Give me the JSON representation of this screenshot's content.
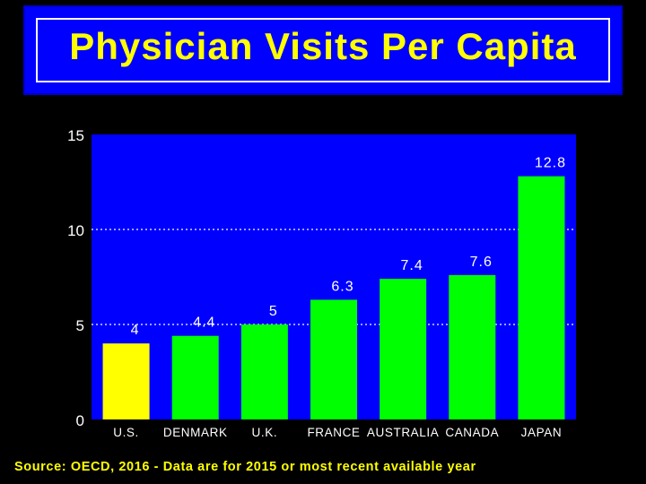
{
  "title": "Physician Visits Per Capita",
  "source": "Source: OECD, 2016 - Data are for 2015 or most recent available year",
  "colors": {
    "background": "#000000",
    "plot_area": "#0000ff",
    "highlight_bar": "#ffff00",
    "bar": "#00ff00",
    "title_text": "#ffff00",
    "axis_text": "#ffffff"
  },
  "chart_data": {
    "type": "bar",
    "categories": [
      "U.S.",
      "DENMARK",
      "U.K.",
      "FRANCE",
      "AUSTRALIA",
      "CANADA",
      "JAPAN"
    ],
    "values": [
      4,
      4.4,
      5,
      6.3,
      7.4,
      7.6,
      12.8
    ],
    "data_labels": [
      "4",
      "4.4",
      "5",
      "6.3",
      "7.4",
      "7.6",
      "12.8"
    ],
    "highlight": "U.S.",
    "ylim": [
      0,
      15
    ],
    "yticks": [
      0,
      5,
      10,
      15
    ],
    "gridlines": "dotted at 5 and 10",
    "xlabel": "",
    "ylabel": ""
  }
}
